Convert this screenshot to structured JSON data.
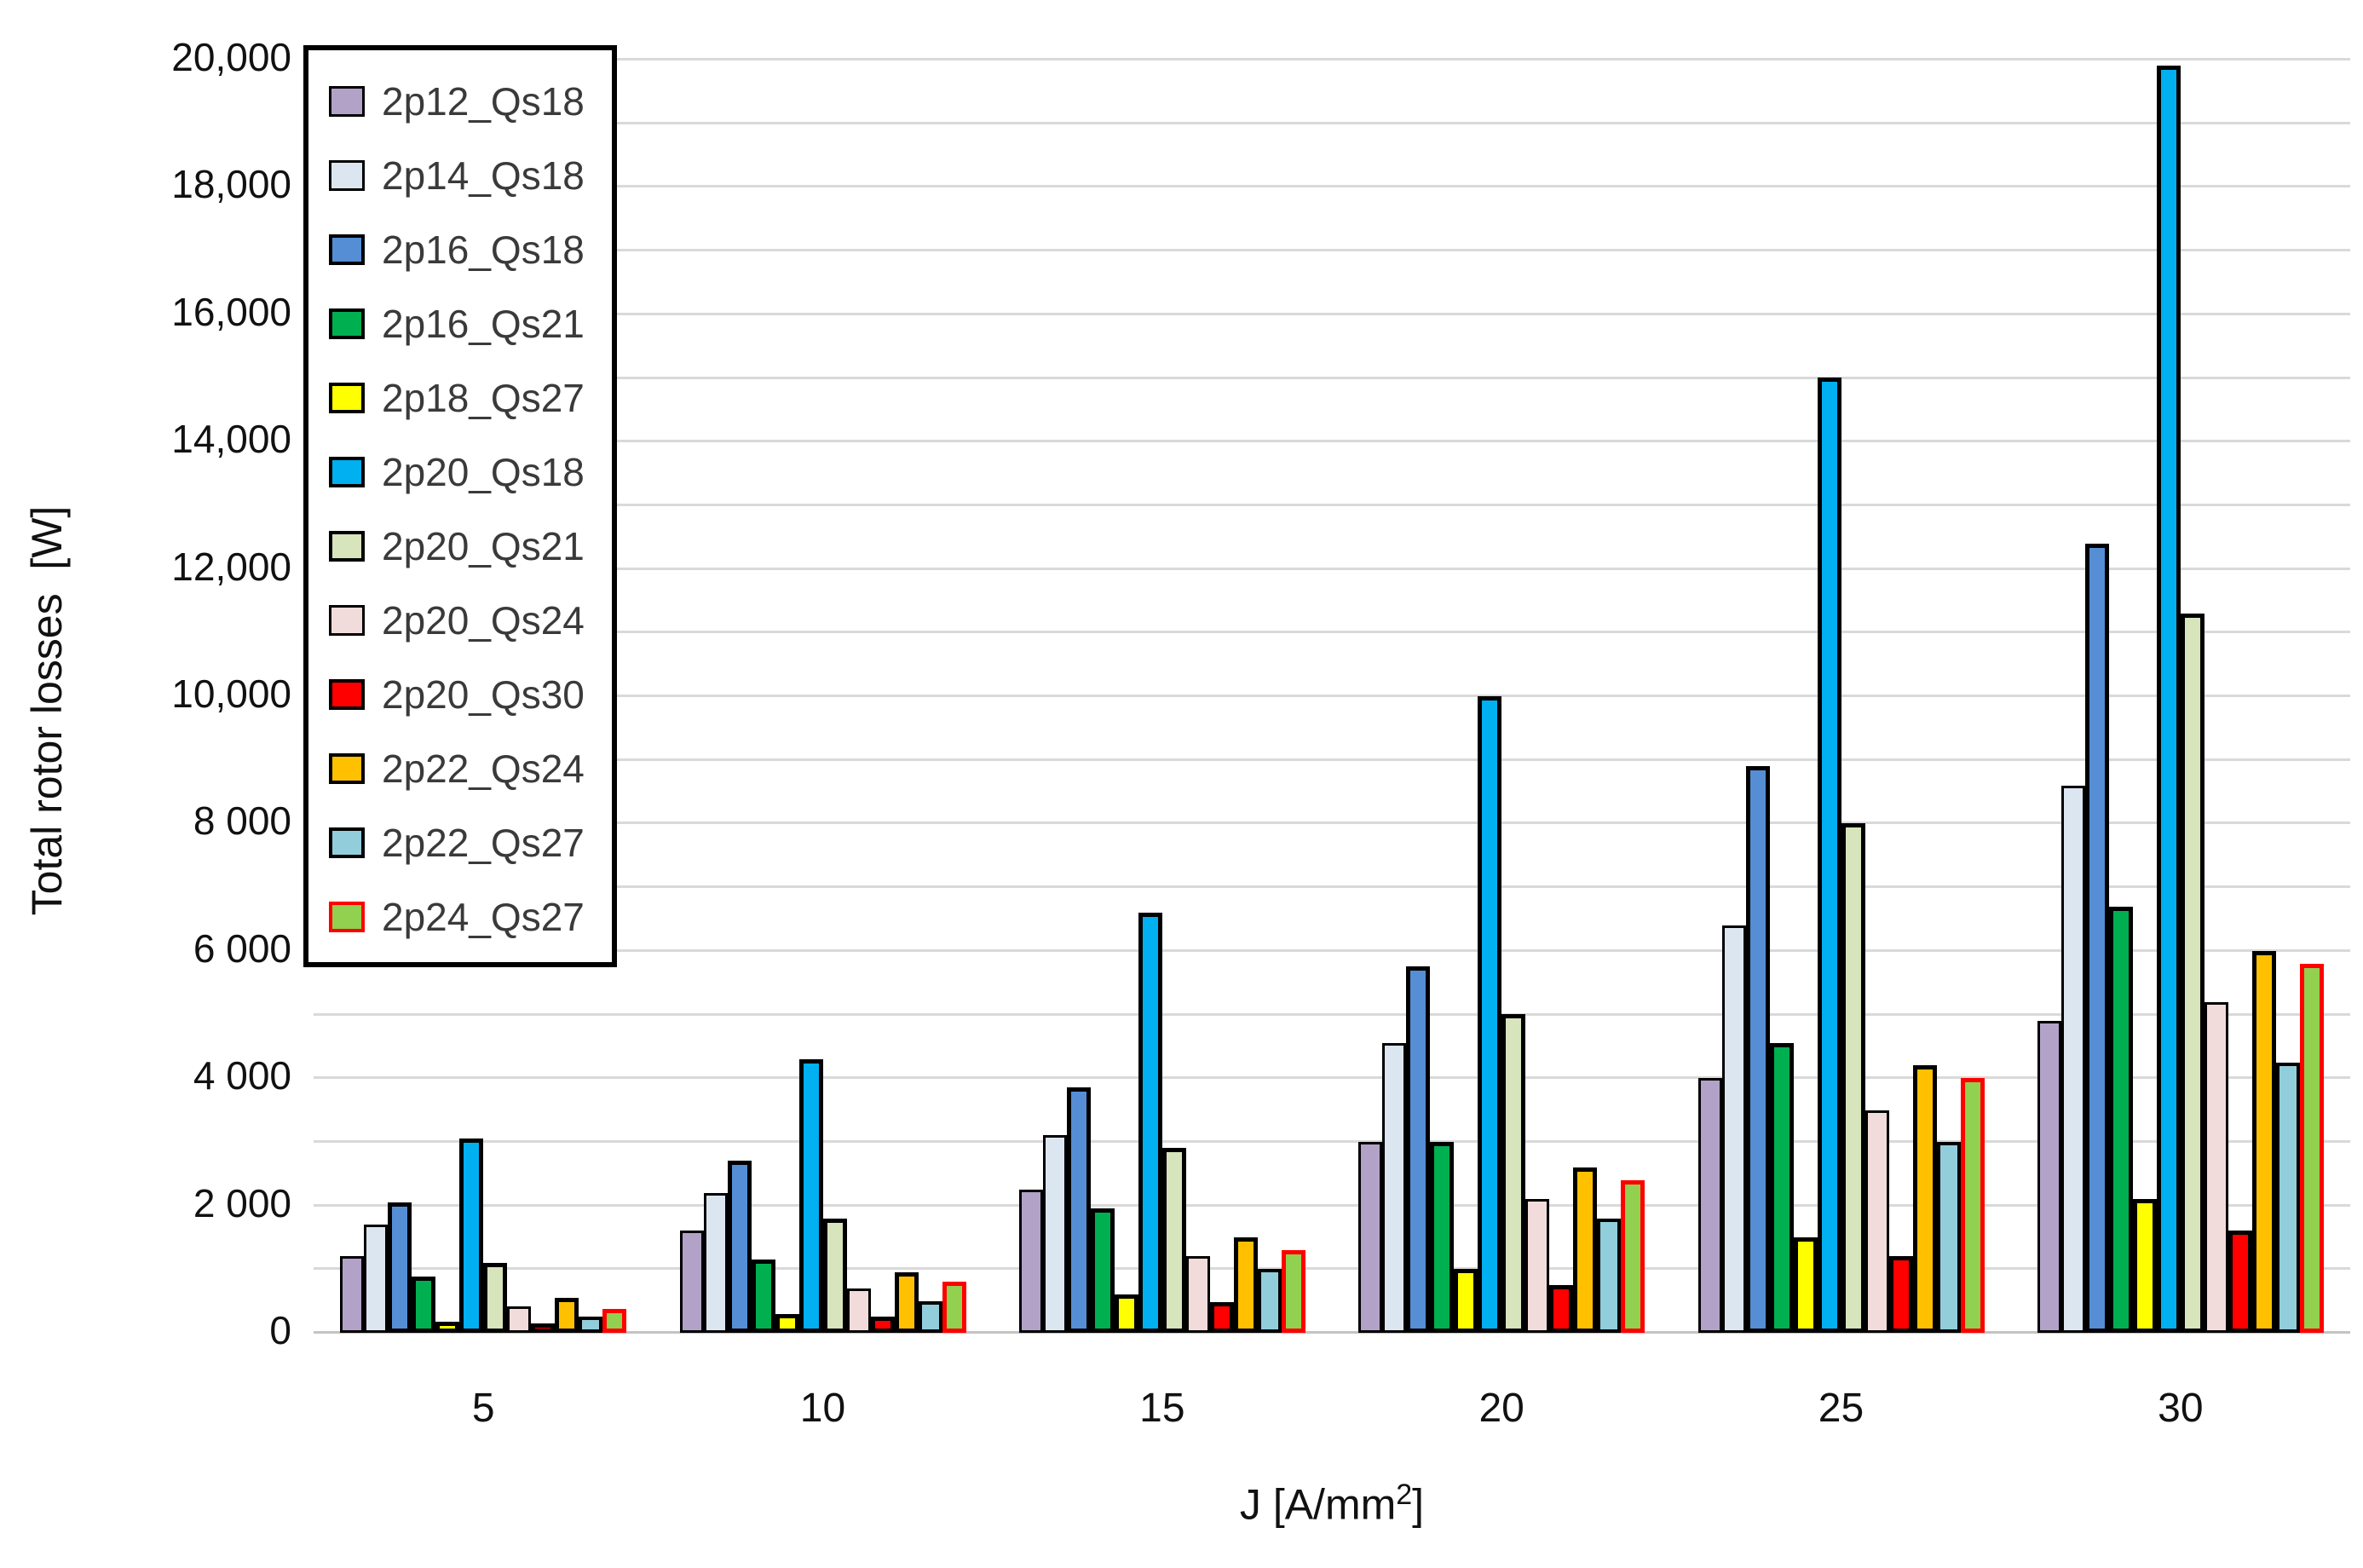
{
  "y_axis": {
    "title": "Total rotor losses  [W]",
    "ticks": [
      {
        "value": 0,
        "label": "0"
      },
      {
        "value": 2000,
        "label": "2 000"
      },
      {
        "value": 4000,
        "label": "4 000"
      },
      {
        "value": 6000,
        "label": "6 000"
      },
      {
        "value": 8000,
        "label": "8 000"
      },
      {
        "value": 10000,
        "label": "10,000"
      },
      {
        "value": 12000,
        "label": "12,000"
      },
      {
        "value": 14000,
        "label": "14,000"
      },
      {
        "value": 16000,
        "label": "16,000"
      },
      {
        "value": 18000,
        "label": "18,000"
      },
      {
        "value": 20000,
        "label": "20,000"
      }
    ]
  },
  "x_axis": {
    "title_main": "J [A/mm",
    "title_sup": "2",
    "title_end": "]"
  },
  "chart_data": {
    "type": "bar",
    "title": "",
    "xlabel": "J [A/mm2]",
    "ylabel": "Total rotor losses [W]",
    "ylim": [
      0,
      20000
    ],
    "gridline_step": 1000,
    "label_step": 2000,
    "grid": true,
    "legend_position": "upper-left-inside",
    "categories": [
      "5",
      "10",
      "15",
      "20",
      "25",
      "30"
    ],
    "series": [
      {
        "name": "2p12_Qs18",
        "color": "#b3a2c7",
        "border": "#000000",
        "border_w": 3,
        "values": [
          1200,
          1600,
          2250,
          3000,
          4000,
          4900
        ]
      },
      {
        "name": "2p14_Qs18",
        "color": "#dce6f1",
        "border": "#000000",
        "border_w": 3,
        "values": [
          1700,
          2200,
          3100,
          4550,
          6400,
          8600
        ]
      },
      {
        "name": "2p16_Qs18",
        "color": "#558ed5",
        "border": "#000000",
        "border_w": 5,
        "values": [
          2050,
          2700,
          3850,
          5750,
          8900,
          12400
        ]
      },
      {
        "name": "2p16_Qs21",
        "color": "#00b050",
        "border": "#000000",
        "border_w": 5,
        "values": [
          880,
          1150,
          1950,
          3000,
          4550,
          6700
        ]
      },
      {
        "name": "2p18_Qs27",
        "color": "#ffff00",
        "border": "#000000",
        "border_w": 5,
        "values": [
          180,
          300,
          600,
          1000,
          1500,
          2100
        ]
      },
      {
        "name": "2p20_Qs18",
        "color": "#00b0f0",
        "border": "#000000",
        "border_w": 5,
        "values": [
          3050,
          4300,
          6600,
          10000,
          15000,
          19900
        ]
      },
      {
        "name": "2p20_Qs21",
        "color": "#d7e4bc",
        "border": "#000000",
        "border_w": 5,
        "values": [
          1100,
          1800,
          2900,
          5000,
          8000,
          11300
        ]
      },
      {
        "name": "2p20_Qs24",
        "color": "#f2dcdb",
        "border": "#000000",
        "border_w": 3,
        "values": [
          420,
          700,
          1200,
          2100,
          3500,
          5200
        ]
      },
      {
        "name": "2p20_Qs30",
        "color": "#ff0000",
        "border": "#000000",
        "border_w": 5,
        "values": [
          150,
          250,
          480,
          750,
          1200,
          1600
        ]
      },
      {
        "name": "2p22_Qs24",
        "color": "#ffc000",
        "border": "#000000",
        "border_w": 5,
        "values": [
          550,
          950,
          1500,
          2600,
          4200,
          6000
        ]
      },
      {
        "name": "2p22_Qs27",
        "color": "#92cddc",
        "border": "#000000",
        "border_w": 4,
        "values": [
          250,
          500,
          1000,
          1800,
          3000,
          4250
        ]
      },
      {
        "name": "2p24_Qs27",
        "color": "#92d050",
        "border": "#ff0000",
        "border_w": 5,
        "values": [
          380,
          800,
          1300,
          2400,
          4000,
          5800
        ]
      }
    ]
  }
}
